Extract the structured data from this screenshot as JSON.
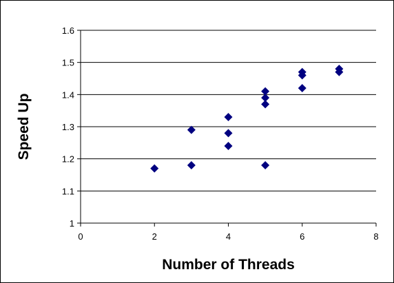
{
  "chart_data": {
    "type": "scatter",
    "title": "",
    "xlabel": "Number of Threads",
    "ylabel": "Speed Up",
    "xlim": [
      0,
      8
    ],
    "ylim": [
      1,
      1.6
    ],
    "xticks": [
      "0",
      "2",
      "4",
      "6",
      "8"
    ],
    "yticks": [
      "1",
      "1.1",
      "1.2",
      "1.3",
      "1.4",
      "1.5",
      "1.6"
    ],
    "grid": "horizontal",
    "legend": "none",
    "marker": "diamond",
    "marker_color": "#000080",
    "series": [
      {
        "x": [
          2,
          3,
          3,
          4,
          4,
          4,
          5,
          5,
          5,
          5,
          6,
          6,
          6,
          7,
          7
        ],
        "y": [
          1.17,
          1.29,
          1.18,
          1.33,
          1.28,
          1.24,
          1.41,
          1.39,
          1.37,
          1.18,
          1.47,
          1.46,
          1.42,
          1.48,
          1.47
        ]
      }
    ]
  }
}
